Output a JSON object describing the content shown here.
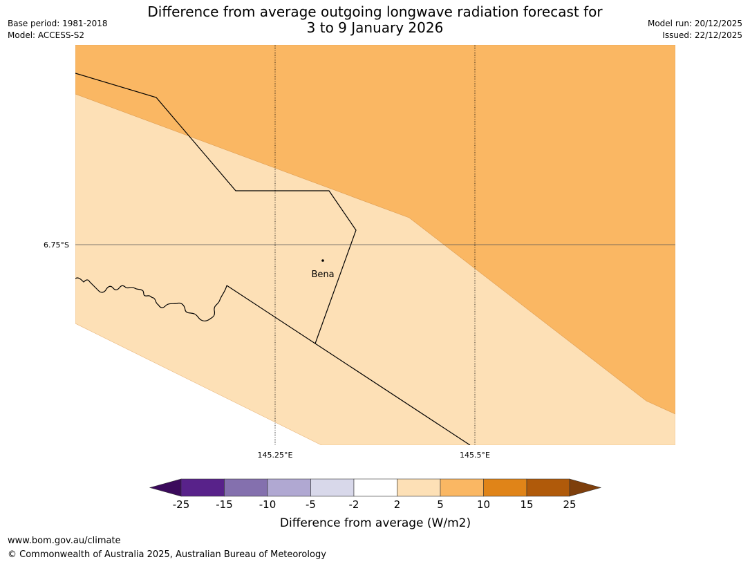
{
  "title": {
    "line1": "Difference from average outgoing longwave radiation forecast for",
    "line2": "3 to 9 January 2026"
  },
  "meta": {
    "base_period": "Base period: 1981-2018",
    "model": "Model: ACCESS-S2",
    "model_run": "Model run: 20/12/2025",
    "issued": "Issued: 22/12/2025"
  },
  "map": {
    "lat_label": "6.75°S",
    "lon_labels": [
      "145.25°E",
      "145.5°E"
    ],
    "place": "Bena"
  },
  "colorbar": {
    "ticks": [
      "-25",
      "-15",
      "-10",
      "-5",
      "-2",
      "2",
      "5",
      "10",
      "15",
      "25"
    ],
    "colors": [
      "#3b0a5c",
      "#58228a",
      "#8470ae",
      "#b0a8d2",
      "#d8d8ea",
      "#ffffff",
      "#fde0b6",
      "#fab763",
      "#e08418",
      "#b05a0a",
      "#7e3f0c"
    ],
    "label": "Difference from average (W/m2)"
  },
  "footer": {
    "url": "www.bom.gov.au/climate",
    "copyright": "© Commonwealth of Australia 2025, Australian Bureau of Meteorology"
  }
}
